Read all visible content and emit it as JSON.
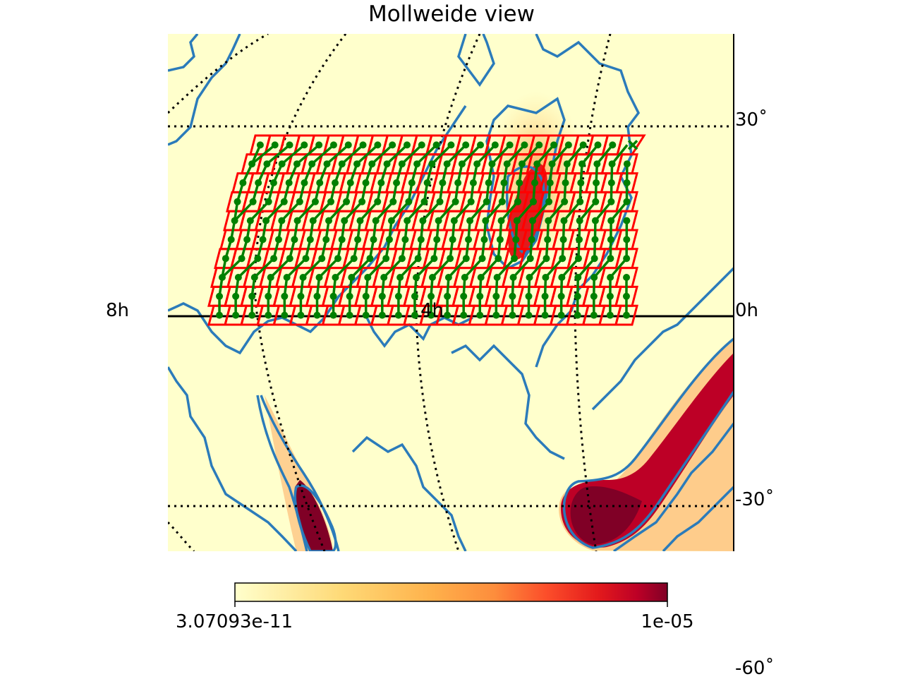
{
  "title": "Mollweide view",
  "ra_labels": {
    "left": "8h",
    "center": "4h",
    "right": "0h"
  },
  "dec_labels": {
    "top": "30˚",
    "bottom": "-30˚",
    "far_bottom": "-60˚"
  },
  "colorbar": {
    "min_label": "3.07093e-11",
    "max_label": "1e-05",
    "colormap": "YlOrRd"
  },
  "colors": {
    "background_map": "#ffffcc",
    "contour": "#2b7bba",
    "tile_outline": "#ff0000",
    "pointing_track": "#008000",
    "high_probability": "#800026"
  },
  "tiling": {
    "rows": 10,
    "columns_per_row": 26,
    "marker_end": "x"
  }
}
